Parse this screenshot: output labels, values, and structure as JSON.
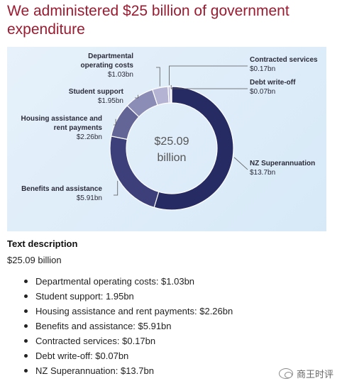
{
  "heading": "We administered $25 billion of government expenditure",
  "chart_data": {
    "type": "pie",
    "variant": "donut",
    "center_label": [
      "$25.09",
      "billion"
    ],
    "total": 25.09,
    "slices": [
      {
        "label": "NZ Superannuation",
        "value": 13.7,
        "value_text": "$13.7bn",
        "color": "#262b63"
      },
      {
        "label": "Benefits and assistance",
        "value": 5.91,
        "value_text": "$5.91bn",
        "color": "#3c3f7a"
      },
      {
        "label": "Housing assistance and rent payments",
        "value": 2.26,
        "value_text": "$2.26bn",
        "color": "#636596"
      },
      {
        "label": "Student support",
        "value": 1.95,
        "value_text": "$1.95bn",
        "color": "#8b8db7"
      },
      {
        "label": "Departmental operating costs",
        "value": 1.03,
        "value_text": "$1.03bn",
        "color": "#b4b3d4"
      },
      {
        "label": "Contracted services",
        "value": 0.17,
        "value_text": "$0.17bn",
        "color": "#c9c8e2"
      },
      {
        "label": "Debt write-off",
        "value": 0.07,
        "value_text": "$0.07bn",
        "color": "#dad9ec"
      }
    ]
  },
  "description": {
    "title": "Text description",
    "total": "$25.09 billion",
    "items": [
      "Departmental operating costs: $1.03bn",
      "Student support: 1.95bn",
      "Housing assistance and rent payments: $2.26bn",
      "Benefits and assistance: $5.91bn",
      "Contracted services: $0.17bn",
      "Debt write-off: $0.07bn",
      "NZ Superannuation: $13.7bn"
    ]
  },
  "watermark": {
    "text": "商王时评",
    "icon": "wechat-logo-icon"
  }
}
